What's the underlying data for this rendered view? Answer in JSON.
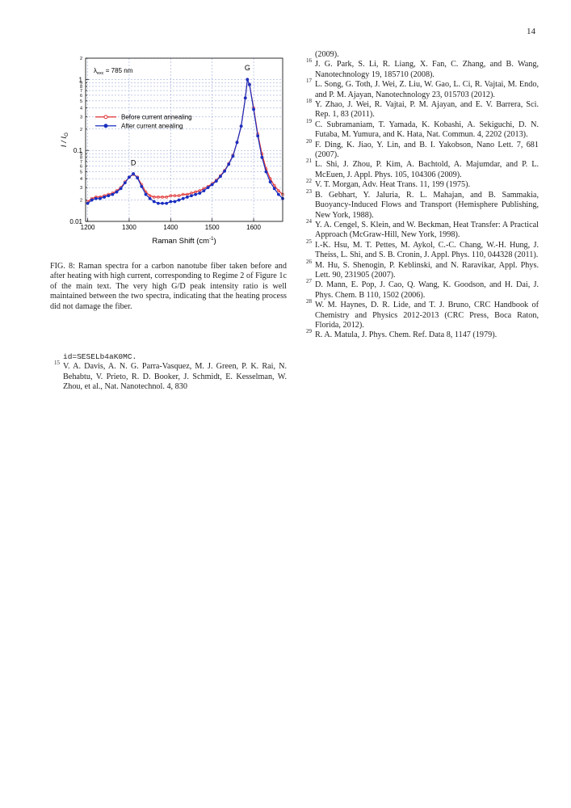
{
  "page_number": "14",
  "chart_data": {
    "type": "line",
    "log_y": true,
    "grid": true,
    "legend": "center left",
    "ylabel": {
      "main": "I / I",
      "sub": "G"
    },
    "xlabel": {
      "main": "Raman Shift (cm",
      "sup": "-1",
      "end": ")"
    },
    "annotation": {
      "main": "λ",
      "sub": "exc",
      "rest": " = 785 nm"
    },
    "peak_labels": [
      {
        "text": "D",
        "x": 1310,
        "y": 0.062
      },
      {
        "text": "G",
        "x": 1585,
        "y": 1.35
      }
    ],
    "xlim": [
      1195,
      1670
    ],
    "xticks": [
      1200,
      1300,
      1400,
      1500,
      1600
    ],
    "ylim": [
      0.01,
      2
    ],
    "yticks": [
      {
        "value": 0.01,
        "label": "0.01"
      },
      {
        "value": 0.02,
        "label": "2"
      },
      {
        "value": 0.03,
        "label": "3"
      },
      {
        "value": 0.04,
        "label": "4"
      },
      {
        "value": 0.05,
        "label": "5"
      },
      {
        "value": 0.06,
        "label": "6"
      },
      {
        "value": 0.07,
        "label": "7"
      },
      {
        "value": 0.08,
        "label": "8"
      },
      {
        "value": 0.09,
        "label": "9"
      },
      0.1,
      {
        "value": 0.2,
        "label": "2"
      },
      {
        "value": 0.3,
        "label": "3"
      },
      {
        "value": 0.4,
        "label": "4"
      },
      {
        "value": 0.5,
        "label": "5"
      },
      {
        "value": 0.6,
        "label": "6"
      },
      {
        "value": 0.7,
        "label": "7"
      },
      {
        "value": 0.8,
        "label": "8"
      },
      {
        "value": 0.9,
        "label": "9"
      },
      1,
      2
    ],
    "x": [
      1200,
      1210,
      1220,
      1230,
      1240,
      1250,
      1260,
      1270,
      1280,
      1290,
      1300,
      1310,
      1320,
      1330,
      1340,
      1350,
      1360,
      1370,
      1380,
      1390,
      1400,
      1410,
      1420,
      1430,
      1440,
      1450,
      1460,
      1470,
      1480,
      1490,
      1500,
      1510,
      1520,
      1530,
      1540,
      1550,
      1560,
      1570,
      1580,
      1585,
      1590,
      1600,
      1610,
      1620,
      1630,
      1640,
      1650,
      1660,
      1670
    ],
    "series": [
      {
        "name": "Before current annealing",
        "color": "#e03030",
        "marker": "open",
        "values": [
          0.019,
          0.021,
          0.022,
          0.022,
          0.023,
          0.024,
          0.025,
          0.027,
          0.03,
          0.036,
          0.042,
          0.046,
          0.042,
          0.033,
          0.026,
          0.023,
          0.022,
          0.022,
          0.022,
          0.022,
          0.023,
          0.023,
          0.023,
          0.024,
          0.024,
          0.025,
          0.026,
          0.027,
          0.029,
          0.031,
          0.034,
          0.038,
          0.044,
          0.052,
          0.065,
          0.085,
          0.13,
          0.22,
          0.55,
          1.0,
          0.85,
          0.4,
          0.17,
          0.09,
          0.055,
          0.04,
          0.032,
          0.027,
          0.024
        ]
      },
      {
        "name": "After current anealing",
        "color": "#1a2fc0",
        "marker": "filled",
        "values": [
          0.018,
          0.02,
          0.021,
          0.021,
          0.022,
          0.023,
          0.024,
          0.026,
          0.029,
          0.035,
          0.042,
          0.047,
          0.041,
          0.031,
          0.024,
          0.021,
          0.019,
          0.018,
          0.018,
          0.018,
          0.019,
          0.019,
          0.02,
          0.021,
          0.022,
          0.023,
          0.024,
          0.025,
          0.027,
          0.03,
          0.033,
          0.037,
          0.043,
          0.051,
          0.064,
          0.083,
          0.13,
          0.22,
          0.55,
          1.0,
          0.85,
          0.38,
          0.16,
          0.08,
          0.05,
          0.036,
          0.029,
          0.024,
          0.021
        ]
      }
    ]
  },
  "caption": "FIG. 8: Raman spectra for a carbon nanotube fiber taken before and after heating with high current, corresponding to Regime 2 of Figure 1c of the main text. The very high G/D peak intensity ratio is well maintained between the two spectra, indicating that the heating process did not damage the fiber.",
  "left_column": {
    "continuation": "id=SESELb4aK0MC.",
    "references": [
      {
        "number": "15",
        "text": "V. A. Davis, A. N. G. Parra-Vasquez, M. J. Green, P. K. Rai, N. Behabtu, V. Prieto, R. D. Booker, J. Schmidt, E. Kesselman, W. Zhou, et al., Nat. Nanotechnol. 4, 830"
      }
    ]
  },
  "right_column": {
    "continuation": "(2009).",
    "references": [
      {
        "number": "16",
        "text": "J. G. Park, S. Li, R. Liang, X. Fan, C. Zhang, and B. Wang, Nanotechnology 19, 185710 (2008)."
      },
      {
        "number": "17",
        "text": "L. Song, G. Toth, J. Wei, Z. Liu, W. Gao, L. Ci, R. Vajtai, M. Endo, and P. M. Ajayan, Nanotechnology 23, 015703 (2012)."
      },
      {
        "number": "18",
        "text": "Y. Zhao, J. Wei, R. Vajtai, P. M. Ajayan, and E. V. Barrera, Sci. Rep. 1, 83 (2011)."
      },
      {
        "number": "19",
        "text": "C. Subramaniam, T. Yamada, K. Kobashi, A. Sekiguchi, D. N. Futaba, M. Yumura, and K. Hata, Nat. Commun. 4, 2202 (2013)."
      },
      {
        "number": "20",
        "text": "F. Ding, K. Jiao, Y. Lin, and B. I. Yakobson, Nano Lett. 7, 681 (2007)."
      },
      {
        "number": "21",
        "text": "L. Shi, J. Zhou, P. Kim, A. Bachtold, A. Majumdar, and P. L. McEuen, J. Appl. Phys. 105, 104306 (2009)."
      },
      {
        "number": "22",
        "text": "V. T. Morgan, Adv. Heat Trans. 11, 199 (1975)."
      },
      {
        "number": "23",
        "text": "B. Gebhart, Y. Jaluria, R. L. Mahajan, and B. Sammakia, Buoyancy-Induced Flows and Transport (Hemisphere Publishing, New York, 1988)."
      },
      {
        "number": "24",
        "text": "Y. A. Cengel, S. Klein, and W. Beckman, Heat Transfer: A Practical Approach (McGraw-Hill, New York, 1998)."
      },
      {
        "number": "25",
        "text": "I.-K. Hsu, M. T. Pettes, M. Aykol, C.-C. Chang, W.-H. Hung, J. Theiss, L. Shi, and S. B. Cronin, J. Appl. Phys. 110, 044328 (2011)."
      },
      {
        "number": "26",
        "text": "M. Hu, S. Shenogin, P. Keblinski, and N. Raravikar, Appl. Phys. Lett. 90, 231905 (2007)."
      },
      {
        "number": "27",
        "text": "D. Mann, E. Pop, J. Cao, Q. Wang, K. Goodson, and H. Dai, J. Phys. Chem. B 110, 1502 (2006)."
      },
      {
        "number": "28",
        "text": "W. M. Haynes, D. R. Lide, and T. J. Bruno, CRC Handbook of Chemistry and Physics 2012-2013 (CRC Press, Boca Raton, Florida, 2012)."
      },
      {
        "number": "29",
        "text": "R. A. Matula, J. Phys. Chem. Ref. Data 8, 1147 (1979)."
      }
    ]
  }
}
